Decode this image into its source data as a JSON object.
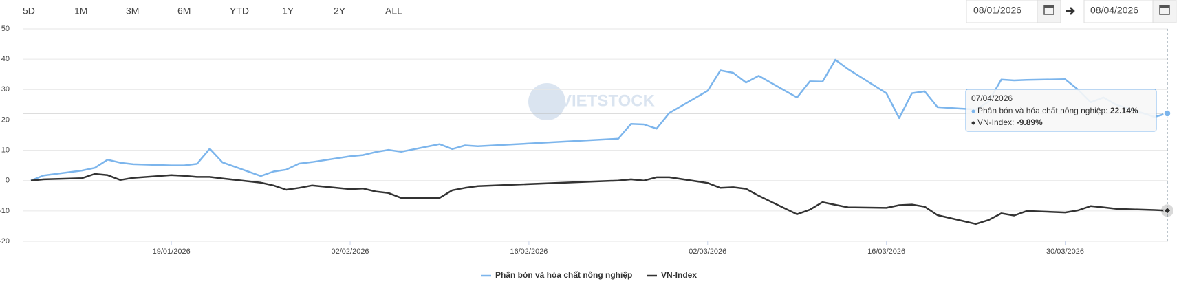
{
  "range_buttons": [
    "5D",
    "1M",
    "3M",
    "6M",
    "YTD",
    "1Y",
    "2Y",
    "ALL"
  ],
  "date_range": {
    "from": "08/01/2026",
    "to": "08/04/2026"
  },
  "watermark": "VIETSTOCK",
  "chart_data": {
    "type": "line",
    "x": [
      "08/01/2026",
      "09/01/2026",
      "12/01/2026",
      "13/01/2026",
      "14/01/2026",
      "15/01/2026",
      "16/01/2026",
      "19/01/2026",
      "20/01/2026",
      "21/01/2026",
      "22/01/2026",
      "23/01/2026",
      "26/01/2026",
      "27/01/2026",
      "28/01/2026",
      "29/01/2026",
      "30/01/2026",
      "02/02/2026",
      "03/02/2026",
      "04/02/2026",
      "05/02/2026",
      "06/02/2026",
      "09/02/2026",
      "10/02/2026",
      "11/02/2026",
      "12/02/2026",
      "23/02/2026",
      "24/02/2026",
      "25/02/2026",
      "26/02/2026",
      "27/02/2026",
      "02/03/2026",
      "03/03/2026",
      "04/03/2026",
      "05/03/2026",
      "06/03/2026",
      "09/03/2026",
      "10/03/2026",
      "11/03/2026",
      "12/03/2026",
      "13/03/2026",
      "16/03/2026",
      "17/03/2026",
      "18/03/2026",
      "19/03/2026",
      "20/03/2026",
      "23/03/2026",
      "24/03/2026",
      "25/03/2026",
      "26/03/2026",
      "27/03/2026",
      "30/03/2026",
      "31/03/2026",
      "01/04/2026",
      "02/04/2026",
      "03/04/2026",
      "06/04/2026",
      "07/04/2026"
    ],
    "series": [
      {
        "name": "Phân bón và hóa chất nông nghiệp",
        "color": "#7cb5ec",
        "values": [
          0,
          1.7,
          3.3,
          4.2,
          6.9,
          5.9,
          5.4,
          5.0,
          5.0,
          5.5,
          10.5,
          6.0,
          1.5,
          3.0,
          3.6,
          5.6,
          6.1,
          8.0,
          8.4,
          9.4,
          10.1,
          9.5,
          12.0,
          10.4,
          11.6,
          11.3,
          13.8,
          18.7,
          18.5,
          17.1,
          22.3,
          29.6,
          36.3,
          35.5,
          32.3,
          34.5,
          27.4,
          32.7,
          32.6,
          39.8,
          36.7,
          28.8,
          20.6,
          28.8,
          29.4,
          24.2,
          23.4,
          26.0,
          33.3,
          33.0,
          33.2,
          33.4,
          30.0,
          25.8,
          27.4,
          25.0,
          21.0,
          22.14
        ]
      },
      {
        "name": "VN-Index",
        "color": "#333333",
        "values": [
          0,
          0.4,
          0.8,
          2.2,
          1.8,
          0.2,
          0.9,
          1.8,
          1.6,
          1.2,
          1.2,
          0.7,
          -0.7,
          -1.6,
          -3.0,
          -2.4,
          -1.6,
          -2.8,
          -2.6,
          -3.6,
          -4.1,
          -5.7,
          -5.7,
          -3.2,
          -2.4,
          -1.8,
          0.0,
          0.4,
          0.0,
          1.1,
          1.1,
          -0.8,
          -2.4,
          -2.2,
          -2.7,
          -5.0,
          -11.1,
          -9.6,
          -7.1,
          -8.0,
          -8.8,
          -9.0,
          -8.1,
          -7.9,
          -8.6,
          -11.4,
          -14.3,
          -13.0,
          -10.8,
          -11.5,
          -10.0,
          -10.5,
          -9.8,
          -8.4,
          -8.8,
          -9.3,
          -9.7,
          -9.89
        ]
      }
    ],
    "xlim": [
      "08/01/2026",
      "07/04/2026"
    ],
    "xticks": [
      "19/01/2026",
      "02/02/2026",
      "16/02/2026",
      "02/03/2026",
      "16/03/2026",
      "30/03/2026"
    ],
    "ylim": [
      -20,
      50
    ],
    "yticks": [
      -20,
      -10,
      0,
      10,
      20,
      30,
      40,
      50
    ],
    "grid": true,
    "legend": "bottom",
    "tooltip": {
      "values": [
        "22.14%",
        "-9.89%"
      ]
    }
  }
}
